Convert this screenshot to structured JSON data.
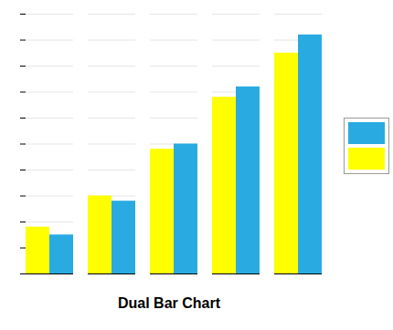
{
  "chart_data": {
    "type": "bar",
    "title": "Dual Bar Chart",
    "categories": [
      null,
      null,
      null,
      null,
      null
    ],
    "series": [
      {
        "color": "#FFFF00",
        "values": [
          1.8,
          3.0,
          4.8,
          6.8,
          8.5
        ]
      },
      {
        "color": "#29ABE2",
        "values": [
          1.5,
          2.8,
          5.0,
          7.2,
          9.2
        ]
      }
    ],
    "ylim": [
      0,
      10
    ],
    "yticks": [
      0,
      1,
      2,
      3,
      4,
      5,
      6,
      7,
      8,
      9,
      10
    ],
    "grid": true,
    "legend": "right",
    "tick_labels": false
  }
}
